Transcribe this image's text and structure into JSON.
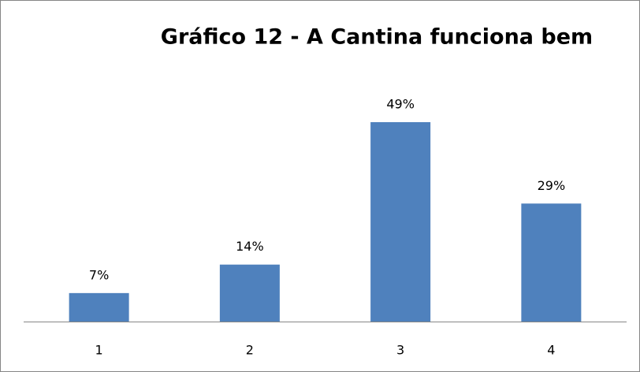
{
  "chart_data": {
    "type": "bar",
    "title": "Gráfico 12 - A Cantina funciona bem",
    "categories": [
      "1",
      "2",
      "3",
      "4"
    ],
    "values": [
      7,
      14,
      49,
      29
    ],
    "value_labels": [
      "7%",
      "14%",
      "49%",
      "29%"
    ],
    "color": "#4f81bd"
  }
}
